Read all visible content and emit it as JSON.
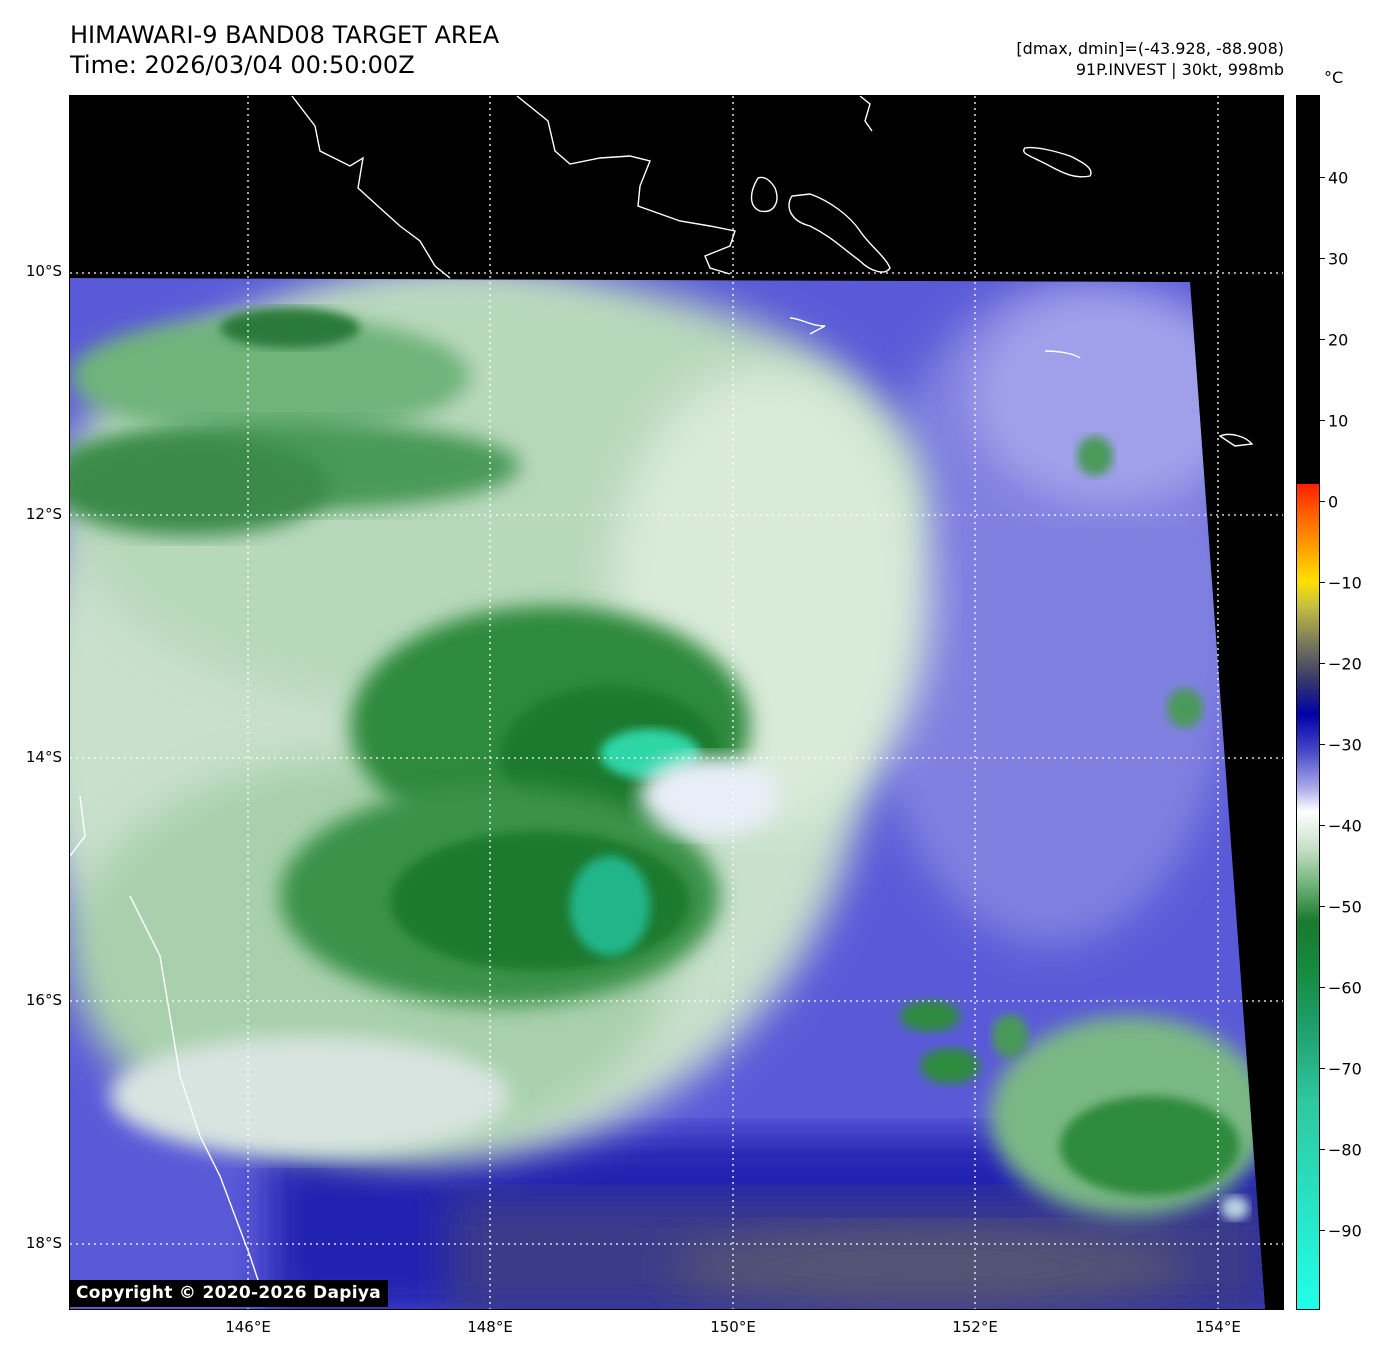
{
  "header": {
    "title_line1": "HIMAWARI-9 BAND08 TARGET AREA",
    "title_line2": "Time: 2026/03/04 00:50:00Z",
    "meta_line1": "[dmax, dmin]=(-43.928, -88.908)",
    "meta_line2": "91P.INVEST | 30kt, 998mb"
  },
  "colorbar": {
    "unit": "°C",
    "ticks": [
      "40",
      "30",
      "20",
      "10",
      "0",
      "−10",
      "−20",
      "−30",
      "−40",
      "−50",
      "−60",
      "−70",
      "−80",
      "−90"
    ],
    "tick_values": [
      40,
      30,
      20,
      10,
      0,
      -10,
      -20,
      -30,
      -40,
      -50,
      -60,
      -70,
      -80,
      -90
    ],
    "range": [
      -100,
      50
    ]
  },
  "map": {
    "lat_labels": [
      "10°S",
      "12°S",
      "14°S",
      "16°S",
      "18°S"
    ],
    "lon_labels": [
      "146°E",
      "148°E",
      "150°E",
      "152°E",
      "154°E"
    ],
    "colors": {
      "background": "#000000",
      "deep_cold": "#2fd6a6",
      "cold_green": "#178a2e",
      "mid_green": "#6fb47a",
      "white": "#ffffff",
      "lavender": "#9b9be6",
      "blue": "#4040c8",
      "dark_blue": "#1010a0",
      "slate": "#4a4a78",
      "coastline": "#ffffff"
    }
  },
  "copyright": "Copyright © 2020-2026 Dapiya"
}
